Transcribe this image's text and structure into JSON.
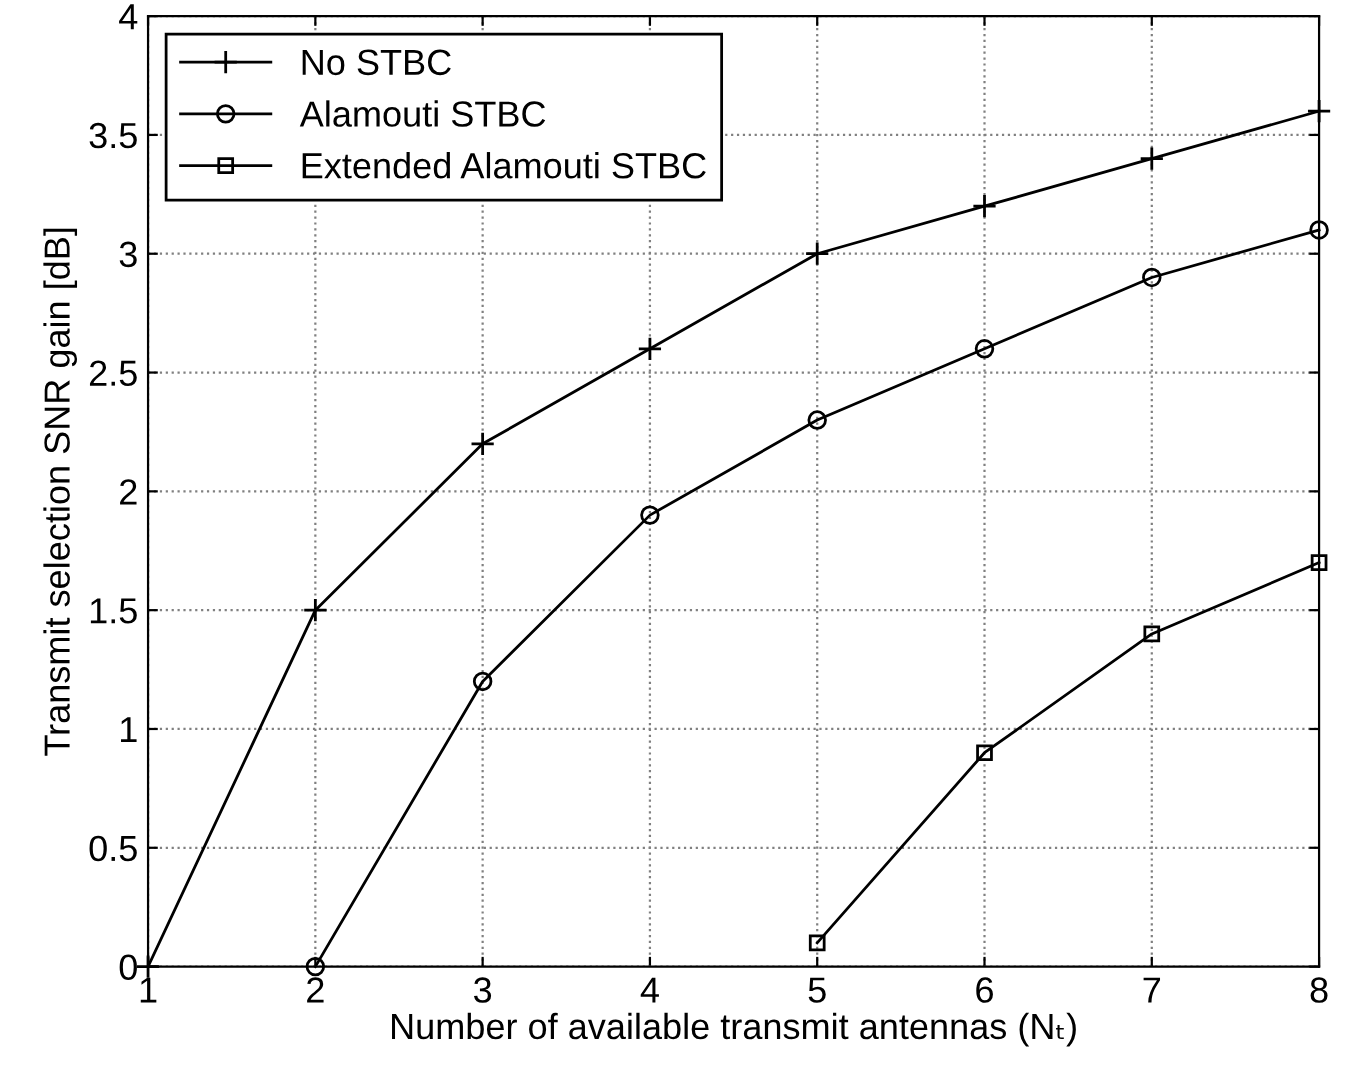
{
  "chart_data": {
    "type": "line",
    "xlabel": "Number of available transmit antennas (Nₜ)",
    "ylabel": "Transmit selection SNR gain [dB]",
    "xlim": [
      1,
      8
    ],
    "xticks": [
      1,
      2,
      3,
      4,
      5,
      6,
      7,
      8
    ],
    "ylim": [
      0,
      4
    ],
    "yticks": [
      0,
      0.5,
      1,
      1.5,
      2,
      2.5,
      3,
      3.5,
      4
    ],
    "grid": true,
    "legend": "top left",
    "line_style": "solid",
    "series": [
      {
        "name": "No STBC",
        "color": "#000000",
        "marker": "cross",
        "x": [
          1,
          2,
          3,
          4,
          5,
          6,
          7,
          8
        ],
        "values": [
          0,
          1.5,
          2.2,
          2.6,
          3.0,
          3.2,
          3.4,
          3.6
        ]
      },
      {
        "name": "Alamouti STBC",
        "color": "#000000",
        "marker": "circle",
        "x": [
          2,
          3,
          4,
          5,
          6,
          7,
          8
        ],
        "values": [
          0,
          1.2,
          1.9,
          2.3,
          2.6,
          2.9,
          3.1
        ]
      },
      {
        "name": "Extended Alamouti STBC",
        "color": "#000000",
        "marker": "square",
        "x": [
          5,
          6,
          7,
          8
        ],
        "values": [
          0.1,
          0.9,
          1.4,
          1.7
        ]
      }
    ]
  }
}
